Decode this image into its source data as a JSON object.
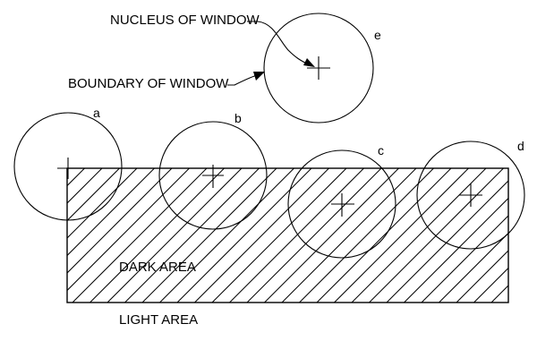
{
  "labels": {
    "nucleus": "NUCLEUS OF WINDOW",
    "boundary": "BOUNDARY OF WINDOW",
    "dark_area": "DARK AREA",
    "light_area": "LIGHT AREA"
  },
  "windows": [
    {
      "id": "a",
      "label": "a"
    },
    {
      "id": "b",
      "label": "b"
    },
    {
      "id": "c",
      "label": "c"
    },
    {
      "id": "d",
      "label": "d"
    },
    {
      "id": "e",
      "label": "e"
    }
  ]
}
